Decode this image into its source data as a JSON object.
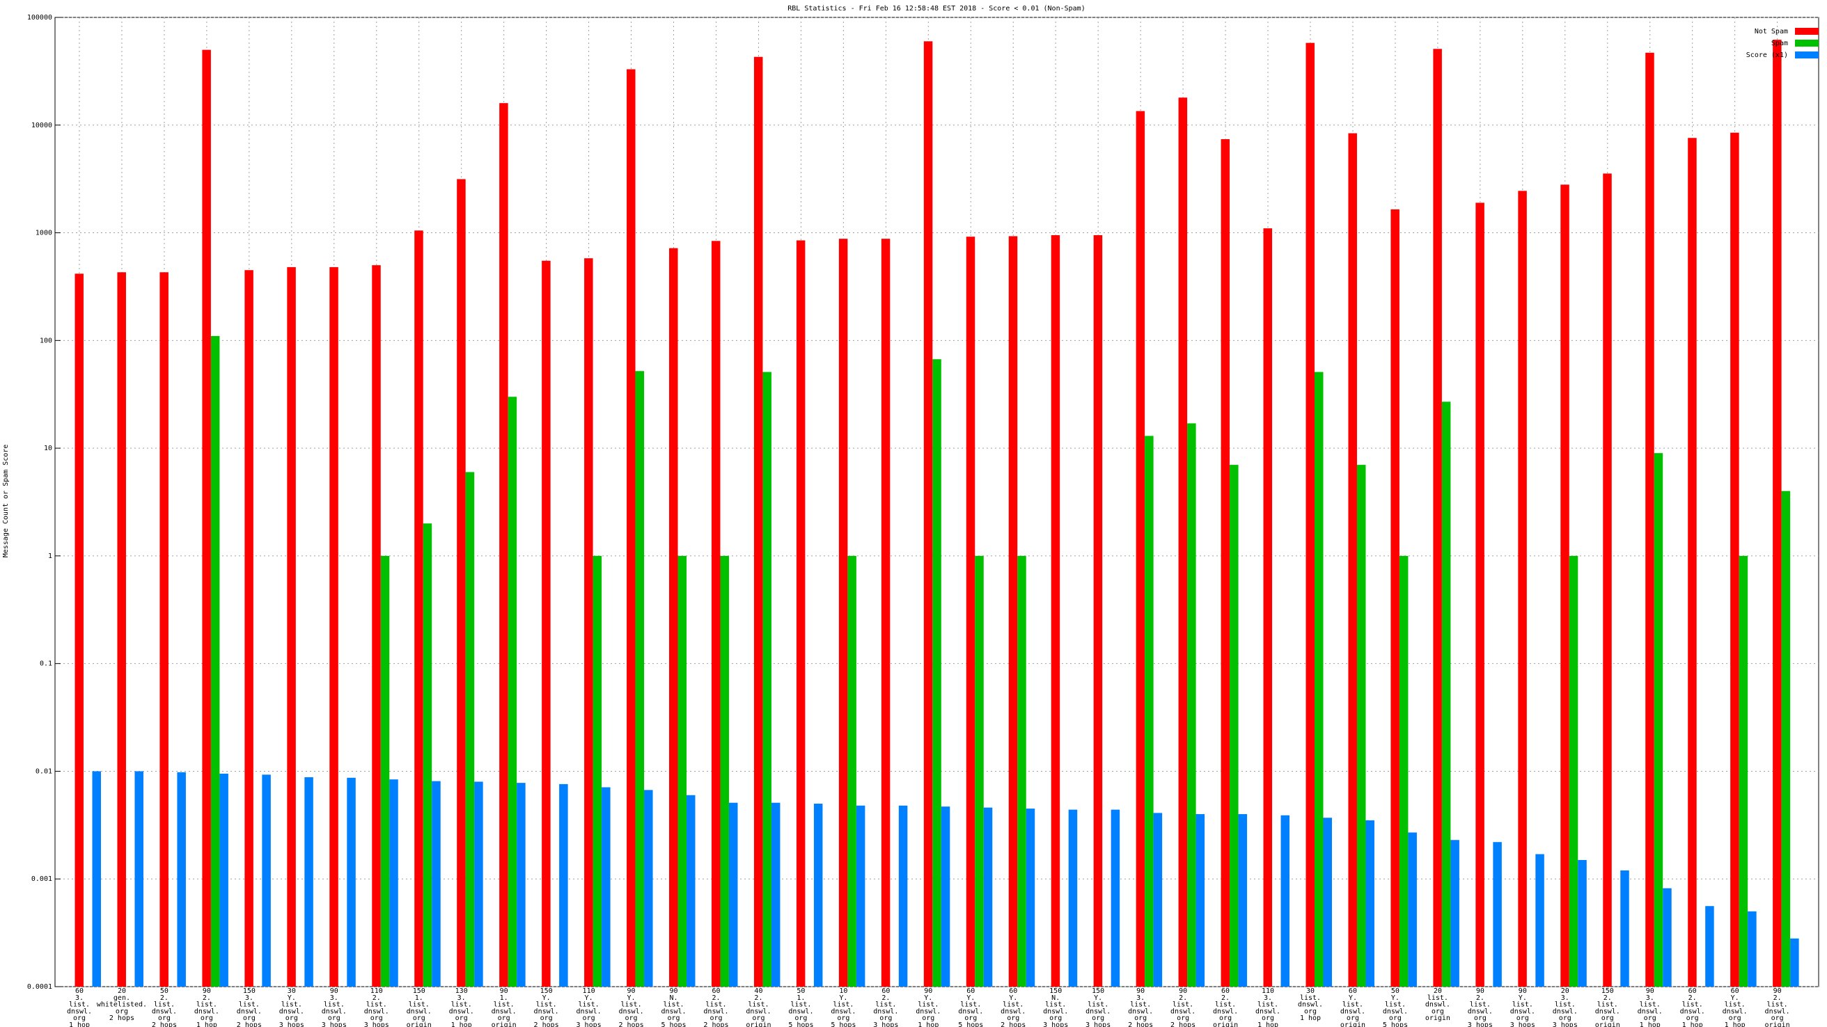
{
  "chart_data": {
    "type": "bar",
    "title": "RBL Statistics - Fri Feb 16 12:58:48 EST 2018 - Score < 0.01 (Non-Spam)",
    "y_label": "Message Count or Spam Score",
    "log_scale": true,
    "grid": true,
    "legend": "top-right",
    "ylim": [
      0.0001,
      100000
    ],
    "yticks": [
      0.0001,
      0.001,
      0.01,
      0.1,
      1,
      10,
      100,
      1000,
      10000,
      100000
    ],
    "categories": [
      [
        "60",
        "3.",
        "list.",
        "dnswl.",
        "org",
        "1 hop"
      ],
      [
        "20",
        "gen.",
        "whitelisted.",
        "org",
        "2 hops"
      ],
      [
        "50",
        "2.",
        "list.",
        "dnswl.",
        "org",
        "2 hops"
      ],
      [
        "90",
        "2.",
        "list.",
        "dnswl.",
        "org",
        "1 hop"
      ],
      [
        "150",
        "3.",
        "list.",
        "dnswl.",
        "org",
        "2 hops"
      ],
      [
        "30",
        "Y.",
        "list.",
        "dnswl.",
        "org",
        "3 hops"
      ],
      [
        "90",
        "3.",
        "list.",
        "dnswl.",
        "org",
        "3 hops"
      ],
      [
        "110",
        "2.",
        "list.",
        "dnswl.",
        "org",
        "3 hops"
      ],
      [
        "150",
        "1.",
        "list.",
        "dnswl.",
        "org",
        "origin"
      ],
      [
        "130",
        "3.",
        "list.",
        "dnswl.",
        "org",
        "1 hop"
      ],
      [
        "90",
        "1.",
        "list.",
        "dnswl.",
        "org",
        "origin"
      ],
      [
        "150",
        "Y.",
        "list.",
        "dnswl.",
        "org",
        "2 hops"
      ],
      [
        "110",
        "Y.",
        "list.",
        "dnswl.",
        "org",
        "3 hops"
      ],
      [
        "90",
        "Y.",
        "list.",
        "dnswl.",
        "org",
        "2 hops"
      ],
      [
        "90",
        "N.",
        "list.",
        "dnswl.",
        "org",
        "5 hops"
      ],
      [
        "60",
        "2.",
        "list.",
        "dnswl.",
        "org",
        "2 hops"
      ],
      [
        "40",
        "2.",
        "list.",
        "dnswl.",
        "org",
        "origin"
      ],
      [
        "50",
        "1.",
        "list.",
        "dnswl.",
        "org",
        "5 hops"
      ],
      [
        "10",
        "Y.",
        "list.",
        "dnswl.",
        "org",
        "5 hops"
      ],
      [
        "60",
        "2.",
        "list.",
        "dnswl.",
        "org",
        "3 hops"
      ],
      [
        "90",
        "Y.",
        "list.",
        "dnswl.",
        "org",
        "1 hop"
      ],
      [
        "60",
        "Y.",
        "list.",
        "dnswl.",
        "org",
        "5 hops"
      ],
      [
        "60",
        "Y.",
        "list.",
        "dnswl.",
        "org",
        "2 hops"
      ],
      [
        "150",
        "N.",
        "list.",
        "dnswl.",
        "org",
        "3 hops"
      ],
      [
        "150",
        "Y.",
        "list.",
        "dnswl.",
        "org",
        "3 hops"
      ],
      [
        "90",
        "3.",
        "list.",
        "dnswl.",
        "org",
        "2 hops"
      ],
      [
        "90",
        "2.",
        "list.",
        "dnswl.",
        "org",
        "2 hops"
      ],
      [
        "60",
        "2.",
        "list.",
        "dnswl.",
        "org",
        "origin"
      ],
      [
        "110",
        "3.",
        "list.",
        "dnswl.",
        "org",
        "1 hop"
      ],
      [
        "30",
        "list.",
        "dnswl.",
        "org",
        "1 hop"
      ],
      [
        "60",
        "Y.",
        "list.",
        "dnswl.",
        "org",
        "origin"
      ],
      [
        "50",
        "Y.",
        "list.",
        "dnswl.",
        "org",
        "5 hops"
      ],
      [
        "20",
        "list.",
        "dnswl.",
        "org",
        "origin"
      ],
      [
        "90",
        "2.",
        "list.",
        "dnswl.",
        "org",
        "3 hops"
      ],
      [
        "90",
        "Y.",
        "list.",
        "dnswl.",
        "org",
        "3 hops"
      ],
      [
        "20",
        "3.",
        "list.",
        "dnswl.",
        "org",
        "3 hops"
      ],
      [
        "150",
        "2.",
        "list.",
        "dnswl.",
        "org",
        "origin"
      ],
      [
        "90",
        "3.",
        "list.",
        "dnswl.",
        "org",
        "1 hop"
      ],
      [
        "60",
        "2.",
        "list.",
        "dnswl.",
        "org",
        "1 hop"
      ],
      [
        "60",
        "Y.",
        "list.",
        "dnswl.",
        "org",
        "1 hop"
      ],
      [
        "90",
        "2.",
        "list.",
        "dnswl.",
        "org",
        "origin"
      ]
    ],
    "series": [
      {
        "name": "Not Spam",
        "color": "#ff0000",
        "values": [
          417,
          430,
          430,
          50000,
          450,
          480,
          480,
          500,
          1050,
          3150,
          16000,
          550,
          580,
          33000,
          720,
          840,
          43000,
          850,
          880,
          880,
          60000,
          920,
          930,
          950,
          950,
          13500,
          18000,
          7400,
          1100,
          58000,
          8400,
          1650,
          51000,
          1900,
          2450,
          2800,
          3550,
          47000,
          7600,
          8500,
          62000
        ]
      },
      {
        "name": "Spam",
        "color": "#00c000",
        "values": [
          null,
          null,
          null,
          110,
          null,
          null,
          null,
          1,
          2,
          6,
          30,
          null,
          1,
          52,
          1,
          1,
          51,
          null,
          1,
          null,
          67,
          1,
          1,
          null,
          null,
          13,
          17,
          7,
          null,
          51,
          7,
          1,
          27,
          null,
          null,
          1,
          null,
          9,
          null,
          1,
          4
        ]
      },
      {
        "name": "Score (x1)",
        "color": "#0080ff",
        "values": [
          0.01,
          0.01,
          0.0098,
          0.0095,
          0.0093,
          0.0088,
          0.0087,
          0.0084,
          0.0081,
          0.008,
          0.0078,
          0.0076,
          0.0071,
          0.0067,
          0.006,
          0.0051,
          0.0051,
          0.005,
          0.0048,
          0.0048,
          0.0047,
          0.0046,
          0.0045,
          0.0044,
          0.0044,
          0.0041,
          0.004,
          0.004,
          0.0039,
          0.0037,
          0.0035,
          0.0027,
          0.0023,
          0.0022,
          0.0017,
          0.0015,
          0.0012,
          0.00082,
          0.00056,
          0.0005,
          0.00028
        ]
      }
    ]
  }
}
